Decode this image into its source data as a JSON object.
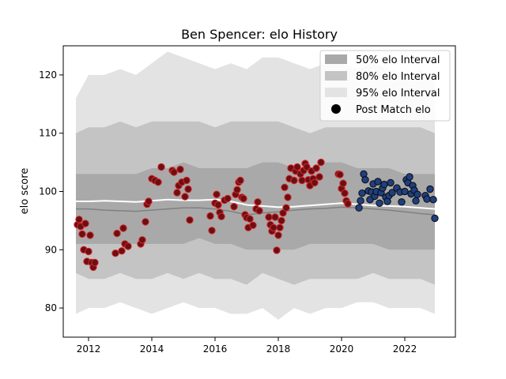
{
  "chart_data": {
    "type": "scatter",
    "title": "Ben Spencer: elo History",
    "xlabel": "",
    "ylabel": "elo score",
    "xlim": [
      2011.2,
      2023.6
    ],
    "ylim": [
      75,
      125
    ],
    "x_ticks": [
      2012,
      2014,
      2016,
      2018,
      2020,
      2022
    ],
    "x_tick_labels": [
      "2012",
      "2014",
      "2016",
      "2018",
      "2020",
      "2022"
    ],
    "y_ticks": [
      80,
      90,
      100,
      110,
      120
    ],
    "y_tick_labels": [
      "80",
      "90",
      "100",
      "110",
      "120"
    ],
    "grid": false,
    "legend": {
      "placement": "top-right",
      "entries": [
        {
          "label": "50% elo Interval",
          "color": "#a9a9a9"
        },
        {
          "label": "80% elo Interval",
          "color": "#c4c4c4"
        },
        {
          "label": "95% elo Interval",
          "color": "#e3e3e3"
        },
        {
          "label": "Post Match elo",
          "color": "#000000"
        }
      ]
    },
    "colors": {
      "band95": "#e3e3e3",
      "band80": "#c4c4c4",
      "band50": "#a9a9a9",
      "median_line": "#808080",
      "mean_line": "#ffffff",
      "red_edge": "#d62728",
      "red_fill": "#6b0f14",
      "blue_fill": "#1f3f7f",
      "blue_edge": "#0a0a0a"
    },
    "interval_bands": {
      "x": [
        2011.6,
        2012.0,
        2012.5,
        2013.0,
        2013.5,
        2014.0,
        2014.5,
        2015.0,
        2015.5,
        2016.0,
        2016.5,
        2017.0,
        2017.5,
        2018.0,
        2018.5,
        2019.0,
        2019.5,
        2020.0,
        2020.5,
        2021.0,
        2021.5,
        2022.0,
        2022.5,
        2022.95
      ],
      "band95_upper": [
        116,
        120,
        120,
        121,
        120,
        122,
        124,
        123,
        122,
        121,
        122,
        121,
        123,
        123,
        122,
        121,
        122,
        122,
        121,
        122,
        121,
        120,
        121,
        119
      ],
      "band95_lower": [
        79,
        80,
        80,
        81,
        80,
        79,
        80,
        81,
        80,
        80,
        79,
        79,
        80,
        78,
        80,
        79,
        80,
        80,
        81,
        81,
        80,
        80,
        80,
        79
      ],
      "band80_upper": [
        110,
        111,
        111,
        112,
        111,
        112,
        112,
        112,
        112,
        111,
        112,
        112,
        112,
        112,
        111,
        110,
        111,
        111,
        111,
        111,
        111,
        111,
        111,
        110
      ],
      "band80_lower": [
        86,
        85,
        85,
        86,
        85,
        85,
        86,
        85,
        86,
        85,
        85,
        84,
        86,
        85,
        84,
        85,
        85,
        85,
        85,
        86,
        85,
        85,
        85,
        84
      ],
      "band50_upper": [
        103,
        103,
        103,
        103,
        103,
        104,
        104,
        105,
        104,
        104,
        104,
        104,
        105,
        105,
        104,
        104,
        105,
        105,
        104,
        104,
        104,
        103,
        103,
        103
      ],
      "band50_lower": [
        91,
        91,
        91,
        91,
        91,
        91,
        91,
        91,
        92,
        91,
        91,
        90,
        90,
        90,
        90,
        91,
        91,
        91,
        91,
        91,
        90,
        90,
        90,
        90
      ]
    },
    "median_line": {
      "x": [
        2011.6,
        2012.0,
        2012.5,
        2013.0,
        2013.5,
        2014.0,
        2014.5,
        2015.0,
        2015.5,
        2016.0,
        2016.5,
        2017.0,
        2017.5,
        2018.0,
        2018.5,
        2019.0,
        2019.5,
        2020.0,
        2020.5,
        2021.0,
        2021.5,
        2022.0,
        2022.5,
        2022.95
      ],
      "y": [
        97,
        97,
        96.8,
        96.7,
        96.6,
        96.8,
        97.0,
        97.2,
        97.2,
        97.0,
        96.6,
        96.0,
        96.3,
        96.5,
        96.8,
        97.0,
        97.1,
        97.3,
        97.2,
        97.0,
        96.8,
        96.5,
        96.2,
        96.0
      ]
    },
    "mean_line": {
      "x": [
        2011.6,
        2012.0,
        2012.5,
        2013.0,
        2013.5,
        2014.0,
        2014.5,
        2015.0,
        2015.5,
        2016.0,
        2016.5,
        2017.0,
        2017.5,
        2018.0,
        2018.5,
        2019.0,
        2019.5,
        2020.0,
        2020.5,
        2021.0,
        2021.5,
        2022.0,
        2022.5,
        2022.95
      ],
      "y": [
        98.3,
        98.3,
        98.4,
        98.3,
        98.2,
        98.4,
        98.6,
        98.5,
        98.5,
        98.6,
        98.3,
        97.7,
        97.5,
        97.3,
        97.4,
        97.6,
        97.8,
        98.0,
        97.8,
        97.6,
        97.5,
        97.4,
        97.2,
        97.0
      ]
    },
    "series": [
      {
        "name": "Post Match elo",
        "style": "red",
        "x": [
          2011.65,
          2011.7,
          2011.75,
          2011.8,
          2011.85,
          2011.9,
          2011.95,
          2012.0,
          2012.05,
          2012.1,
          2012.15,
          2012.2,
          2012.85,
          2012.9,
          2013.05,
          2013.1,
          2013.15,
          2013.25,
          2013.65,
          2013.7,
          2013.8,
          2013.85,
          2013.9,
          2014.0,
          2014.1,
          2014.2,
          2014.3,
          2014.65,
          2014.7,
          2014.8,
          2014.85,
          2014.9,
          2014.95,
          2015.05,
          2015.1,
          2015.15,
          2015.2,
          2015.85,
          2015.9,
          2016.0,
          2016.05,
          2016.1,
          2016.15,
          2016.2,
          2016.3,
          2016.4,
          2016.6,
          2016.65,
          2016.7,
          2016.75,
          2016.8,
          2016.85,
          2016.9,
          2016.95,
          2017.0,
          2017.05,
          2017.1,
          2017.2,
          2017.3,
          2017.35,
          2017.4,
          2017.7,
          2017.75,
          2017.8,
          2017.85,
          2017.9,
          2017.95,
          2018.0,
          2018.05,
          2018.1,
          2018.15,
          2018.2,
          2018.25,
          2018.3,
          2018.35,
          2018.4,
          2018.5,
          2018.55,
          2018.6,
          2018.7,
          2018.75,
          2018.8,
          2018.85,
          2018.9,
          2018.95,
          2019.0,
          2019.05,
          2019.1,
          2019.15,
          2019.2,
          2019.3,
          2019.35,
          2019.9,
          2019.95,
          2020.0,
          2020.05,
          2020.1,
          2020.15,
          2020.2
        ],
        "y": [
          94.3,
          95.2,
          94.0,
          92.7,
          90.0,
          94.5,
          88.0,
          89.7,
          92.5,
          87.8,
          87.0,
          87.8,
          89.4,
          92.8,
          89.8,
          93.7,
          91.0,
          90.6,
          91.0,
          91.7,
          94.8,
          97.8,
          98.3,
          102.2,
          101.9,
          101.6,
          104.2,
          103.6,
          103.3,
          99.8,
          101.0,
          103.8,
          101.6,
          99.1,
          101.9,
          100.4,
          95.1,
          95.8,
          93.3,
          98.0,
          99.5,
          97.7,
          96.4,
          95.7,
          98.5,
          98.8,
          97.4,
          99.5,
          100.3,
          101.6,
          101.9,
          99.0,
          98.8,
          96.0,
          95.5,
          93.8,
          95.3,
          94.2,
          97.0,
          98.2,
          96.7,
          95.6,
          94.3,
          93.2,
          93.8,
          95.6,
          89.9,
          92.5,
          93.8,
          95.0,
          96.3,
          100.7,
          97.2,
          99.0,
          102.2,
          104.0,
          101.9,
          103.5,
          104.2,
          103.0,
          101.9,
          103.6,
          104.8,
          104.2,
          102.0,
          101.0,
          103.5,
          102.2,
          101.5,
          104.0,
          102.5,
          105.0,
          103.0,
          102.9,
          100.5,
          101.4,
          99.7,
          98.4,
          97.9
        ]
      },
      {
        "name": "Post Match elo",
        "style": "blue",
        "x": [
          2020.55,
          2020.6,
          2020.65,
          2020.7,
          2020.75,
          2020.85,
          2020.9,
          2020.95,
          2021.0,
          2021.05,
          2021.1,
          2021.15,
          2021.2,
          2021.25,
          2021.3,
          2021.35,
          2021.4,
          2021.45,
          2021.5,
          2021.55,
          2021.6,
          2021.75,
          2021.85,
          2021.9,
          2022.0,
          2022.05,
          2022.1,
          2022.15,
          2022.2,
          2022.25,
          2022.3,
          2022.35,
          2022.4,
          2022.65,
          2022.7,
          2022.8,
          2022.9,
          2022.95
        ],
        "y": [
          97.2,
          98.4,
          99.7,
          103.0,
          102.0,
          100.1,
          98.6,
          99.9,
          101.3,
          99.2,
          100.0,
          101.7,
          98.0,
          99.8,
          100.6,
          101.2,
          99.0,
          98.3,
          99.3,
          101.5,
          99.8,
          100.6,
          99.9,
          98.2,
          100.0,
          102.0,
          101.5,
          102.5,
          99.6,
          101.0,
          100.2,
          98.4,
          99.5,
          99.3,
          98.7,
          100.4,
          98.6,
          95.4
        ]
      }
    ]
  }
}
